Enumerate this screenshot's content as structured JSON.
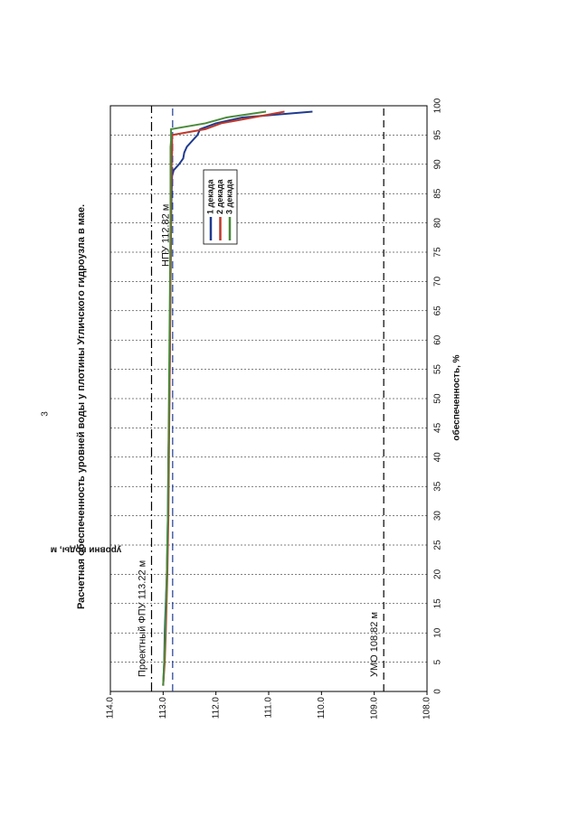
{
  "page_number": "3",
  "chart_data": {
    "type": "line",
    "title": "Расчетная обеспеченность уровней воды у плотины Угличского гидроузла в мае.",
    "xlabel": "обеспеченность, %",
    "ylabel": "уровни воды, м",
    "x": [
      1,
      5,
      10,
      20,
      30,
      40,
      50,
      60,
      70,
      80,
      85,
      88,
      89,
      90,
      91,
      92,
      93,
      94,
      95,
      96,
      97,
      98,
      99
    ],
    "series": [
      {
        "name": "1 декада",
        "color": "#1f3a8f",
        "values": [
          113.0,
          112.98,
          112.97,
          112.93,
          112.91,
          112.9,
          112.88,
          112.87,
          112.86,
          112.85,
          112.84,
          112.83,
          112.8,
          112.7,
          112.62,
          112.6,
          112.55,
          112.45,
          112.35,
          112.3,
          112.0,
          111.5,
          110.17
        ]
      },
      {
        "name": "2 декада",
        "color": "#c0392b",
        "values": [
          113.0,
          112.97,
          112.95,
          112.92,
          112.9,
          112.89,
          112.88,
          112.87,
          112.86,
          112.85,
          112.85,
          112.84,
          112.84,
          112.84,
          112.84,
          112.83,
          112.83,
          112.83,
          112.83,
          112.2,
          111.9,
          111.3,
          110.7
        ]
      },
      {
        "name": "3 декада",
        "color": "#4a8a3a",
        "values": [
          113.0,
          112.98,
          112.96,
          112.93,
          112.91,
          112.9,
          112.89,
          112.88,
          112.87,
          112.86,
          112.86,
          112.86,
          112.86,
          112.86,
          112.86,
          112.86,
          112.86,
          112.85,
          112.85,
          112.85,
          112.2,
          111.8,
          111.05
        ]
      }
    ],
    "xlim": [
      0,
      100
    ],
    "xticks": [
      0,
      5,
      10,
      15,
      20,
      25,
      30,
      35,
      40,
      45,
      50,
      55,
      60,
      65,
      70,
      75,
      80,
      85,
      90,
      95,
      100
    ],
    "ylim": [
      108,
      114
    ],
    "yticks": [
      {
        "value": 108,
        "label": "108.0"
      },
      {
        "value": 109,
        "label": "109.0"
      },
      {
        "value": 110,
        "label": "110.0"
      },
      {
        "value": 111,
        "label": "111.0"
      },
      {
        "value": 112,
        "label": "112.0"
      },
      {
        "value": 113,
        "label": "113.0"
      },
      {
        "value": 114,
        "label": "114.0"
      }
    ],
    "grid": true,
    "reference_lines": [
      {
        "label": "Проектный ФПУ 113.22 м",
        "value": 113.22,
        "color": "#000000",
        "style": "dashdot"
      },
      {
        "label": "НПУ 112.82 м",
        "value": 112.82,
        "color": "#1f3a8f",
        "style": "dashed"
      },
      {
        "label": "УМО 108.82 м",
        "value": 108.82,
        "color": "#000000",
        "style": "dashed"
      }
    ]
  }
}
